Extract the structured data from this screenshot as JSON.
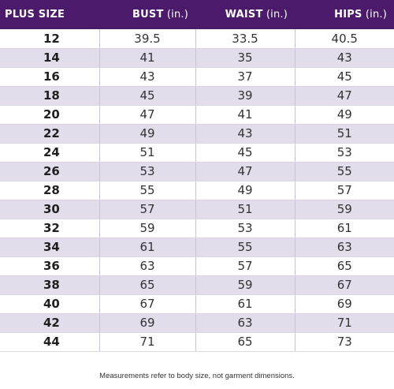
{
  "table": {
    "headers": [
      {
        "label": "PLUS SIZE",
        "unit": ""
      },
      {
        "label": "BUST",
        "unit": " (in.)"
      },
      {
        "label": "WAIST",
        "unit": " (in.)"
      },
      {
        "label": "HIPS",
        "unit": " (in.)"
      }
    ],
    "rows": [
      [
        "12",
        "39.5",
        "33.5",
        "40.5"
      ],
      [
        "14",
        "41",
        "35",
        "43"
      ],
      [
        "16",
        "43",
        "37",
        "45"
      ],
      [
        "18",
        "45",
        "39",
        "47"
      ],
      [
        "20",
        "47",
        "41",
        "49"
      ],
      [
        "22",
        "49",
        "43",
        "51"
      ],
      [
        "24",
        "51",
        "45",
        "53"
      ],
      [
        "26",
        "53",
        "47",
        "55"
      ],
      [
        "28",
        "55",
        "49",
        "57"
      ],
      [
        "30",
        "57",
        "51",
        "59"
      ],
      [
        "32",
        "59",
        "53",
        "61"
      ],
      [
        "34",
        "61",
        "55",
        "63"
      ],
      [
        "36",
        "63",
        "57",
        "65"
      ],
      [
        "38",
        "65",
        "59",
        "67"
      ],
      [
        "40",
        "67",
        "61",
        "69"
      ],
      [
        "42",
        "69",
        "63",
        "71"
      ],
      [
        "44",
        "71",
        "65",
        "73"
      ]
    ]
  },
  "footnote": "Measurements refer to body size, not garment dimensions.",
  "colors": {
    "header_bg": "#4b1a6b",
    "stripe": "#e3dceb"
  }
}
